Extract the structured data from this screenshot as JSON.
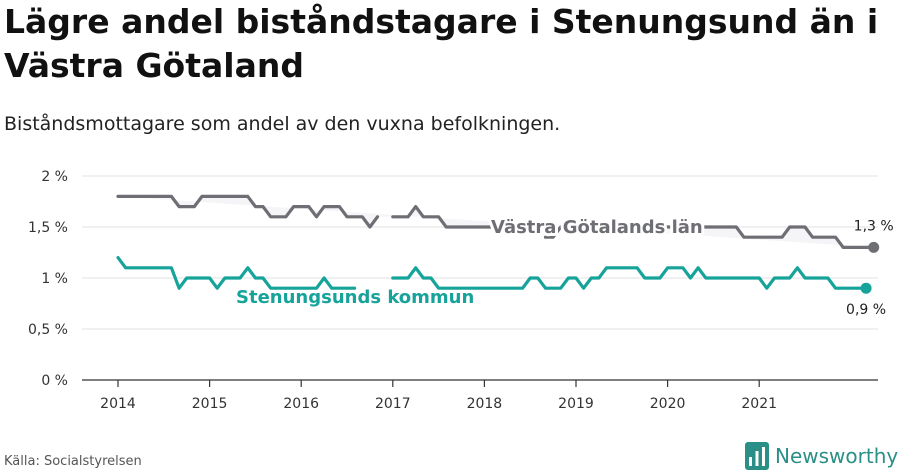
{
  "title": "Lägre andel biståndstagare i Stenungsund än i Västra Götaland",
  "subtitle": "Biståndsmottagare som andel av den vuxna befolkningen.",
  "source": "Källa: Socialstyrelsen",
  "brand": "Newsworthy",
  "colors": {
    "vg": "#6e6e75",
    "sten": "#16a39a",
    "band": "#f5f5f7",
    "grid": "#e2e2e2",
    "brand": "#2a8f86"
  },
  "chart_data": {
    "type": "line",
    "x_start_year": 2014,
    "x_start_month": 1,
    "ylim": [
      0,
      2
    ],
    "y_ticks": [
      0,
      0.5,
      1,
      1.5,
      2
    ],
    "y_tick_labels": [
      "0 %",
      "0,5 %",
      "1 %",
      "1,5 %",
      "2 %"
    ],
    "x_tick_labels": [
      "2014",
      "2015",
      "2016",
      "2017",
      "2018",
      "2019",
      "2020",
      "2021"
    ],
    "series": [
      {
        "name": "Västra Götalands län",
        "end_label": "1,3 %",
        "values": [
          1.8,
          1.8,
          1.8,
          1.8,
          1.8,
          1.8,
          1.8,
          1.8,
          1.7,
          1.7,
          1.7,
          1.8,
          1.8,
          1.8,
          1.8,
          1.8,
          1.8,
          1.8,
          1.7,
          1.7,
          1.6,
          1.6,
          1.6,
          1.7,
          1.7,
          1.7,
          1.6,
          1.7,
          1.7,
          1.7,
          1.6,
          1.6,
          1.6,
          1.5,
          1.6,
          null,
          1.6,
          1.6,
          1.6,
          1.7,
          1.6,
          1.6,
          1.6,
          1.5,
          1.5,
          1.5,
          1.5,
          1.5,
          1.5,
          1.5,
          1.5,
          1.5,
          1.5,
          null,
          null,
          null,
          1.4,
          1.4,
          1.5,
          1.5,
          1.5,
          1.5,
          1.5,
          1.5,
          1.5,
          1.5,
          1.5,
          1.5,
          1.5,
          1.5,
          1.5,
          1.5,
          1.5,
          1.5,
          1.5,
          1.5,
          1.5,
          1.5,
          1.5,
          1.5,
          1.5,
          1.5,
          1.4,
          1.4,
          1.4,
          1.4,
          1.4,
          1.4,
          1.5,
          1.5,
          1.5,
          1.4,
          1.4,
          1.4,
          1.4,
          1.3,
          1.3,
          1.3,
          1.3,
          1.3
        ]
      },
      {
        "name": "Stenungsunds kommun",
        "end_label": "0,9 %",
        "values": [
          1.2,
          1.1,
          1.1,
          1.1,
          1.1,
          1.1,
          1.1,
          1.1,
          0.9,
          1.0,
          1.0,
          1.0,
          1.0,
          0.9,
          1.0,
          1.0,
          1.0,
          1.1,
          1.0,
          1.0,
          0.9,
          0.9,
          0.9,
          0.9,
          0.9,
          0.9,
          0.9,
          1.0,
          0.9,
          0.9,
          0.9,
          0.9,
          null,
          null,
          null,
          null,
          1.0,
          1.0,
          1.0,
          1.1,
          1.0,
          1.0,
          0.9,
          0.9,
          0.9,
          0.9,
          0.9,
          0.9,
          0.9,
          0.9,
          0.9,
          0.9,
          0.9,
          0.9,
          1.0,
          1.0,
          0.9,
          0.9,
          0.9,
          1.0,
          1.0,
          0.9,
          1.0,
          1.0,
          1.1,
          1.1,
          1.1,
          1.1,
          1.1,
          1.0,
          1.0,
          1.0,
          1.1,
          1.1,
          1.1,
          1.0,
          1.1,
          1.0,
          1.0,
          1.0,
          1.0,
          1.0,
          1.0,
          1.0,
          1.0,
          0.9,
          1.0,
          1.0,
          1.0,
          1.1,
          1.0,
          1.0,
          1.0,
          1.0,
          0.9,
          0.9,
          0.9,
          0.9,
          0.9
        ]
      }
    ]
  }
}
